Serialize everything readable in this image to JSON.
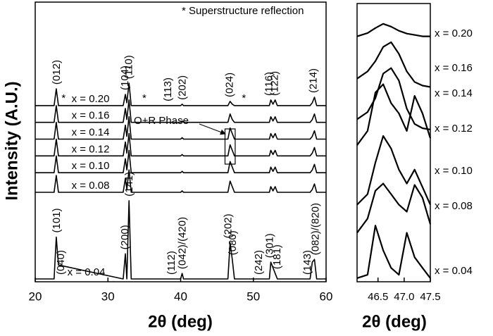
{
  "chart_data": [
    {
      "type": "line",
      "xlabel": "2θ (deg)",
      "ylabel": "Intensity (A.U.)",
      "color": "#000000",
      "xlim": [
        20,
        60
      ],
      "xticks": [
        20,
        30,
        40,
        50,
        60
      ],
      "ylim": [
        0,
        100
      ],
      "x": [
        20,
        22.6,
        22.9,
        23.2,
        32.1,
        32.4,
        32.6,
        32.9,
        33.2,
        40.0,
        40.2,
        40.4,
        46.5,
        46.8,
        47.1,
        47.4,
        52.2,
        52.4,
        52.7,
        53.0,
        53.3,
        57.8,
        58.1,
        58.4,
        58.7,
        60
      ],
      "series": [
        {
          "name": "x = 0.20",
          "values": [
            63,
            63,
            69,
            63,
            63,
            67,
            64,
            71,
            63,
            63,
            63.5,
            63,
            63,
            64.5,
            63.5,
            63,
            63,
            65,
            63.5,
            65,
            63,
            63,
            64,
            66,
            63,
            63
          ]
        },
        {
          "name": "x = 0.16",
          "values": [
            57,
            57,
            63,
            57,
            57,
            62,
            58,
            65,
            57,
            57,
            57.5,
            57,
            57,
            60,
            58,
            57,
            57,
            59,
            57.5,
            59,
            57,
            57,
            58,
            60,
            57,
            57
          ]
        },
        {
          "name": "x = 0.14",
          "values": [
            51,
            51,
            57,
            51,
            51,
            56,
            52,
            59,
            51,
            51,
            51.5,
            51,
            51,
            55,
            53,
            51,
            51,
            53,
            51.5,
            53,
            51,
            51,
            52,
            54,
            51,
            51
          ]
        },
        {
          "name": "x = 0.12",
          "values": [
            45,
            45,
            51,
            45,
            45,
            50,
            46,
            53,
            45,
            45,
            45.5,
            45,
            45,
            49,
            47,
            45,
            45,
            47,
            45.5,
            47,
            45,
            45,
            46,
            48,
            45,
            45
          ]
        },
        {
          "name": "x = 0.10",
          "values": [
            39,
            39,
            45,
            39,
            39,
            44,
            40,
            47,
            39,
            39,
            39.5,
            39,
            39,
            43,
            41,
            39,
            39,
            41,
            39.5,
            41,
            39,
            39,
            40,
            42,
            39,
            39
          ]
        },
        {
          "name": "x = 0.08",
          "values": [
            32,
            32,
            38,
            32,
            32,
            37,
            33,
            40,
            32,
            32,
            32.5,
            32,
            32,
            36,
            34,
            32,
            32,
            34,
            32.5,
            34,
            32,
            32,
            33,
            35,
            32,
            32
          ]
        },
        {
          "name": "x = 0.04",
          "values": [
            1,
            1,
            16,
            6,
            1,
            10,
            1,
            29,
            1,
            1,
            3,
            1,
            1,
            14,
            8,
            1,
            1,
            7,
            5,
            3,
            1,
            1,
            7,
            8,
            1,
            1
          ]
        }
      ],
      "annotations_top": [
        {
          "text": "(012)",
          "x": 23.0
        },
        {
          "text": "(104)",
          "x": 32.4
        },
        {
          "text": "(110)",
          "x": 32.95
        },
        {
          "text": "(113)",
          "x": 38.3
        },
        {
          "text": "(202)",
          "x": 40.3
        },
        {
          "text": "(024)",
          "x": 46.8
        },
        {
          "text": "(116)",
          "x": 52.2
        },
        {
          "text": "(122)",
          "x": 53.0
        },
        {
          "text": "(214)",
          "x": 58.3
        }
      ],
      "annotations_bottom": [
        {
          "text": "(101)",
          "x": 23.0
        },
        {
          "text": "(040)",
          "x": 23.6
        },
        {
          "text": "(200)",
          "x": 32.4
        },
        {
          "text": "(141)",
          "x": 33.0
        },
        {
          "text": "(112)",
          "x": 38.8
        },
        {
          "text": "(042)/(420)",
          "x": 40.3
        },
        {
          "text": "(202)",
          "x": 46.6
        },
        {
          "text": "(080)",
          "x": 47.2
        },
        {
          "text": "(242)",
          "x": 50.8
        },
        {
          "text": "(301)",
          "x": 52.3
        },
        {
          "text": "(181)",
          "x": 53.3
        },
        {
          "text": "(143)",
          "x": 57.5
        },
        {
          "text": "(082)/(820)",
          "x": 58.6
        }
      ],
      "superstructure": {
        "note": "* Superstructure reflection",
        "symbol": "*",
        "x": [
          23.9,
          35.0,
          48.7
        ]
      },
      "phase_label": "O+R Phase"
    },
    {
      "type": "line",
      "xlabel": "2θ (deg)",
      "color": "#000000",
      "xlim": [
        46.1,
        47.5
      ],
      "xticks": [
        46.5,
        {
          "value": 47,
          "label": "47.0"
        },
        47.5
      ],
      "ylim": [
        0,
        100
      ],
      "x": [
        46.1,
        46.3,
        46.45,
        46.6,
        46.75,
        46.9,
        47.05,
        47.2,
        47.35,
        47.5
      ],
      "series": [
        {
          "name": "x = 0.20",
          "values": [
            88.2,
            89.4,
            91.2,
            92.7,
            91.7,
            90.2,
            89.2,
            88.7,
            88.2,
            88.2
          ]
        },
        {
          "name": "x = 0.16",
          "values": [
            73.0,
            75.6,
            79.3,
            84.4,
            86.1,
            81.9,
            75.6,
            71.8,
            70.5,
            70.0
          ]
        },
        {
          "name": "x = 0.14",
          "values": [
            58.4,
            61.0,
            66.0,
            74.8,
            76.8,
            72.3,
            62.2,
            56.7,
            55.2,
            54.7
          ]
        },
        {
          "name": "x = 0.12",
          "values": [
            49.1,
            54.2,
            68.0,
            71.0,
            64.2,
            60.5,
            54.2,
            66.8,
            60.5,
            51.6
          ]
        },
        {
          "name": "x = 0.10",
          "values": [
            27.7,
            31.5,
            42.8,
            52.4,
            47.9,
            40.3,
            35.3,
            40.3,
            34.0,
            27.7
          ]
        },
        {
          "name": "x = 0.08",
          "values": [
            17.6,
            22.7,
            32.7,
            35.3,
            31.5,
            27.7,
            25.2,
            34.8,
            30.2,
            20.7
          ]
        },
        {
          "name": "x = 0.04",
          "values": [
            1.3,
            2.5,
            20.2,
            11.3,
            5.0,
            2.5,
            17.6,
            8.8,
            5.0,
            1.3
          ]
        }
      ]
    }
  ]
}
